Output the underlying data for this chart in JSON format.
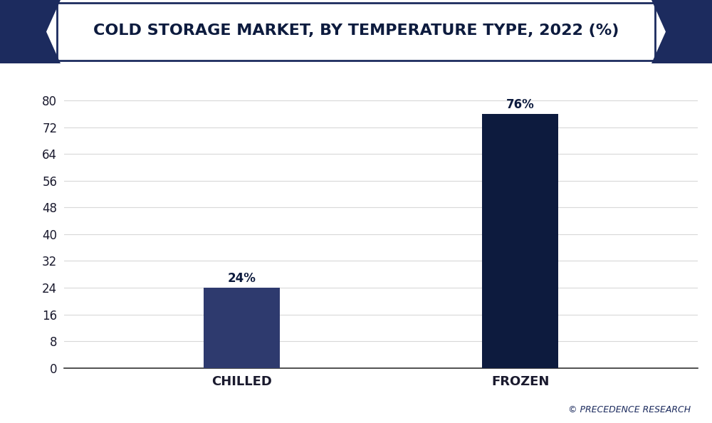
{
  "title": "COLD STORAGE MARKET, BY TEMPERATURE TYPE, 2022 (%)",
  "categories": [
    "CHILLED",
    "FROZEN"
  ],
  "values": [
    24,
    76
  ],
  "bar_colors": [
    "#2E3A6E",
    "#0D1B3E"
  ],
  "bar_labels": [
    "24%",
    "76%"
  ],
  "background_color": "#FFFFFF",
  "plot_bg_color": "#FFFFFF",
  "title_color": "#0D1B3E",
  "tick_label_color": "#1A1A2E",
  "grid_color": "#D8D8D8",
  "yticks": [
    0,
    8,
    16,
    24,
    32,
    40,
    48,
    56,
    64,
    72,
    80
  ],
  "ylim": [
    0,
    86
  ],
  "bar_width": 0.12,
  "x_positions": [
    0.28,
    0.72
  ],
  "xlim": [
    0.0,
    1.0
  ],
  "label_fontsize": 12,
  "title_fontsize": 16,
  "tick_fontsize": 12,
  "watermark": "© PRECEDENCE RESEARCH",
  "header_bg_color": "#FFFFFF",
  "header_accent_color": "#1C2B5E",
  "header_border_color": "#1C2B5E"
}
